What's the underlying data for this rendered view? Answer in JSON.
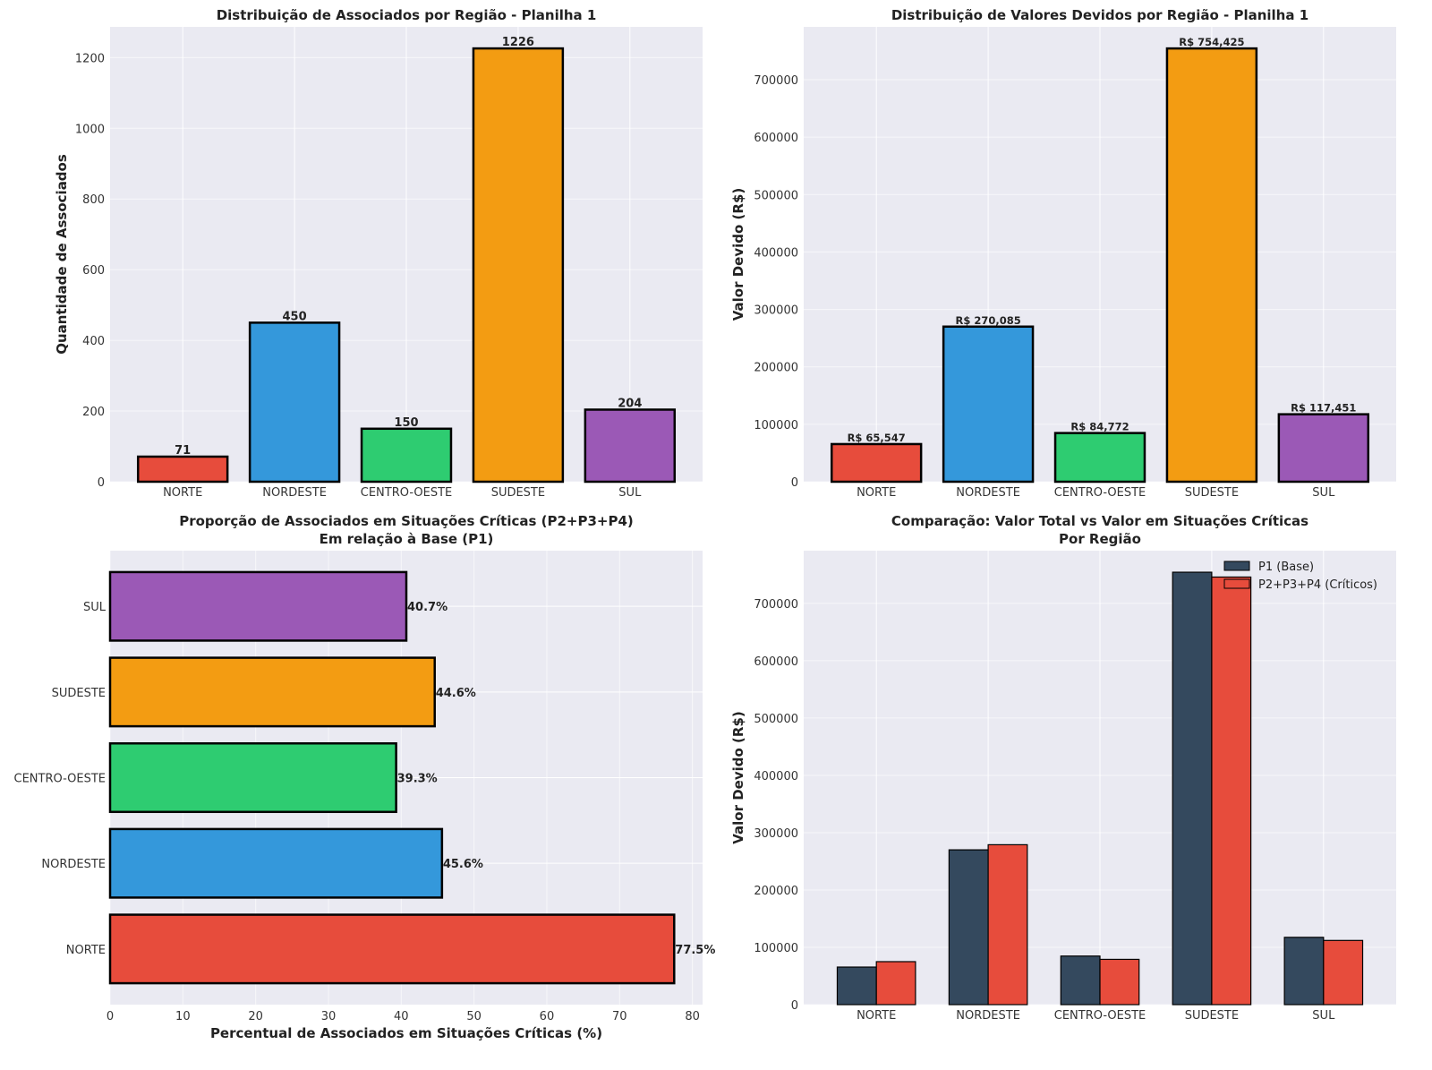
{
  "chart_data": [
    {
      "id": "c1",
      "type": "bar",
      "title": "Distribuição de Associados por Região - Planilha 1",
      "xlabel": "",
      "ylabel": "Quantidade de Associados",
      "categories": [
        "NORTE",
        "NORDESTE",
        "CENTRO-OESTE",
        "SUDESTE",
        "SUL"
      ],
      "values": [
        71,
        450,
        150,
        1226,
        204
      ],
      "value_labels": [
        "71",
        "450",
        "150",
        "1226",
        "204"
      ],
      "colors": [
        "#e74c3c",
        "#3498db",
        "#2ecc71",
        "#f39c12",
        "#9b59b6"
      ],
      "ylim": [
        0,
        1287
      ],
      "yticks": [
        0,
        200,
        400,
        600,
        800,
        1000,
        1200
      ],
      "grid": true
    },
    {
      "id": "c2",
      "type": "bar",
      "title": "Distribuição de Valores Devidos por Região - Planilha 1",
      "xlabel": "",
      "ylabel": "Valor Devido (R$)",
      "categories": [
        "NORTE",
        "NORDESTE",
        "CENTRO-OESTE",
        "SUDESTE",
        "SUL"
      ],
      "values": [
        65547,
        270085,
        84772,
        754425,
        117451
      ],
      "value_labels": [
        "R$ 65,547",
        "R$ 270,085",
        "R$ 84,772",
        "R$ 754,425",
        "R$ 117,451"
      ],
      "colors": [
        "#e74c3c",
        "#3498db",
        "#2ecc71",
        "#f39c12",
        "#9b59b6"
      ],
      "ylim": [
        0,
        792000
      ],
      "yticks": [
        0,
        100000,
        200000,
        300000,
        400000,
        500000,
        600000,
        700000
      ],
      "grid": true
    },
    {
      "id": "c3",
      "type": "bar",
      "orientation": "horizontal",
      "title": "Proporção de Associados em Situações Críticas (P2+P3+P4)",
      "subtitle": "Em relação à Base (P1)",
      "xlabel": "Percentual de Associados em Situações Críticas (%)",
      "ylabel": "",
      "categories": [
        "NORTE",
        "NORDESTE",
        "CENTRO-OESTE",
        "SUDESTE",
        "SUL"
      ],
      "values": [
        77.5,
        45.6,
        39.3,
        44.6,
        40.7
      ],
      "value_labels": [
        "77.5%",
        "45.6%",
        "39.3%",
        "44.6%",
        "40.7%"
      ],
      "colors": [
        "#e74c3c",
        "#3498db",
        "#2ecc71",
        "#f39c12",
        "#9b59b6"
      ],
      "xlim": [
        0,
        81.4
      ],
      "xticks": [
        0,
        10,
        20,
        30,
        40,
        50,
        60,
        70,
        80
      ],
      "grid": true
    },
    {
      "id": "c4",
      "type": "bar",
      "title": "Comparação: Valor Total vs Valor em Situações Críticas",
      "subtitle": "Por Região",
      "xlabel": "",
      "ylabel": "Valor Devido (R$)",
      "categories": [
        "NORTE",
        "NORDESTE",
        "CENTRO-OESTE",
        "SUDESTE",
        "SUL"
      ],
      "series": [
        {
          "name": "P1 (Base)",
          "color": "#34495e",
          "values": [
            65547,
            270085,
            84772,
            754425,
            117451
          ]
        },
        {
          "name": "P2+P3+P4 (Críticos)",
          "color": "#e74c3c",
          "values": [
            75000,
            279000,
            79000,
            746000,
            112000
          ]
        }
      ],
      "ylim": [
        0,
        792000
      ],
      "yticks": [
        0,
        100000,
        200000,
        300000,
        400000,
        500000,
        600000,
        700000
      ],
      "legend": "top-right",
      "grid": true
    }
  ]
}
